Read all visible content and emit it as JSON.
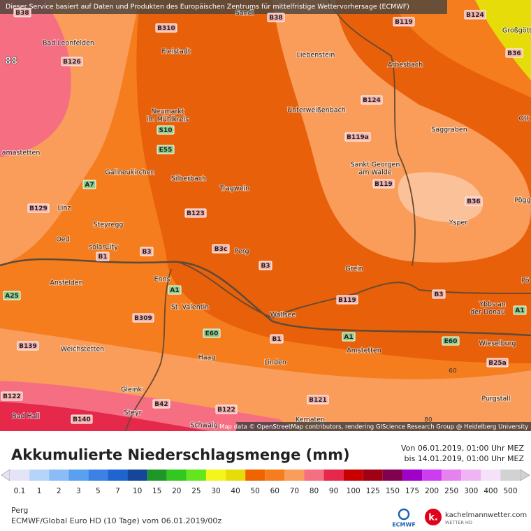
{
  "header": {
    "notice": "Dieser Service basiert auf Daten und Produkten des Europäischen Zentrums für mittelfristige Wettervorhersage (ECMWF)"
  },
  "map": {
    "places": [
      "Sandl",
      "Großgött",
      "Bad Leonfelden",
      "Freistadt",
      "Liebenstein",
      "Arbesbach",
      "Ott",
      "Neumarkt",
      "im Mühlkreis",
      "Unterweißenbach",
      "Saggraben",
      "amastetten",
      "Gallneukirchen",
      "Silberbach",
      "Tragwein",
      "Sankt Georgen",
      "am Walde",
      "Pögg",
      "Linz",
      "Ysper",
      "Steyregg",
      "Oed",
      "solarCity",
      "Perg",
      "Grein",
      "Ansfelden",
      "Enns",
      "Pö",
      "Ybbs an",
      "der Donau",
      "St. Valentin",
      "Wallsee",
      "Weichstetten",
      "Wieselburg",
      "Amstetten",
      "Haag",
      "Linden",
      "Gleink",
      "Purgstall",
      "Steyr",
      "Bad Hall",
      "Schwaig",
      "Kematen"
    ],
    "roads": [
      "B38",
      "B38",
      "B310",
      "B119",
      "B124",
      "B36",
      "B126",
      "B124",
      "B119a",
      "S10",
      "E55",
      "A7",
      "B119",
      "B129",
      "B123",
      "B36",
      "B3c",
      "B3",
      "B1",
      "B3",
      "A1",
      "B3",
      "A25",
      "B119",
      "A1",
      "B309",
      "E60",
      "B1",
      "A1",
      "E60",
      "B139",
      "B25a",
      "B122",
      "B42",
      "B122",
      "B121",
      "B140"
    ],
    "contour_labels": [
      88,
      60,
      80
    ],
    "attribution": "Map data © OpenStreetMap contributors, rendering GIScience Research Group @ Heidelberg University"
  },
  "legend": {
    "title": "Akkumulierte Niederschlagsmenge (mm)",
    "period_from": "Von 06.01.2019, 01:00 Uhr MEZ",
    "period_to": "bis 14.01.2019, 01:00 Uhr MEZ",
    "steps": [
      {
        "value": 0.1,
        "color": "#e4e4f6"
      },
      {
        "value": 1,
        "color": "#b4d4fa"
      },
      {
        "value": 2,
        "color": "#8cbcf8"
      },
      {
        "value": 3,
        "color": "#5aa0f0"
      },
      {
        "value": 5,
        "color": "#3c82e6"
      },
      {
        "value": 7,
        "color": "#1e64d2"
      },
      {
        "value": 10,
        "color": "#14469a"
      },
      {
        "value": 15,
        "color": "#1e9628"
      },
      {
        "value": 20,
        "color": "#32c81e"
      },
      {
        "value": 25,
        "color": "#64e61e"
      },
      {
        "value": 30,
        "color": "#f5f51e"
      },
      {
        "value": 40,
        "color": "#e6dc0a"
      },
      {
        "value": 50,
        "color": "#f06400"
      },
      {
        "value": 60,
        "color": "#f57d1e"
      },
      {
        "value": 70,
        "color": "#fa9c5a"
      },
      {
        "value": 80,
        "color": "#f56e82"
      },
      {
        "value": 90,
        "color": "#e6284b"
      },
      {
        "value": 100,
        "color": "#c80000"
      },
      {
        "value": 125,
        "color": "#a00014"
      },
      {
        "value": 150,
        "color": "#820050"
      },
      {
        "value": 175,
        "color": "#a000c8"
      },
      {
        "value": 200,
        "color": "#cd3cf0"
      },
      {
        "value": 250,
        "color": "#e682f0"
      },
      {
        "value": 300,
        "color": "#f0b4f5"
      },
      {
        "value": 400,
        "color": "#f5e1fa"
      },
      {
        "value": 500,
        "color": "#d2d2d2"
      }
    ]
  },
  "footer": {
    "location": "Perg",
    "model": "ECMWF/Global Euro HD (10 Tage) vom 06.01.2019/00z",
    "logo_ecmwf": "ECMWF",
    "logo_site": "kachelmannwetter.com",
    "logo_sub": "WETTER HD"
  }
}
